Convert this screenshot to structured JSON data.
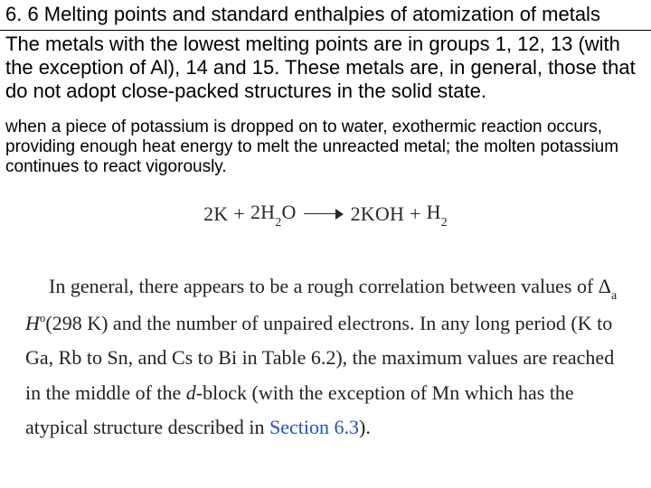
{
  "title": "6. 6 Melting points and standard enthalpies of atomization of metals",
  "para1": "The metals with the lowest melting points are in groups 1, 12, 13 (with the exception of Al), 14 and 15. These metals are, in general, those that do not adopt close-packed structures in the solid state.",
  "para2": "when a piece of potassium is dropped on to water, exothermic reaction occurs, providing enough heat energy to melt the unreacted metal; the molten potassium continues to react vigorously.",
  "equation": {
    "lhs_a": "2K",
    "plus1": "+",
    "lhs_b_coef": "2H",
    "lhs_b_sub": "2",
    "lhs_b_tail": "O",
    "rhs_a": "2KOH",
    "plus2": "+",
    "rhs_b": "H",
    "rhs_b_sub": "2"
  },
  "serif": {
    "t1": "In general, there appears to be a rough correlation between values of ",
    "delta": "Δ",
    "delta_sub": "a",
    "h": " H",
    "h_sup": "o",
    "k": "(298 K) and the number of unpaired electrons. In any long period (K to Ga, Rb to Sn, and Cs to Bi in Table 6.2), the maximum values are reached in the middle of the ",
    "dblock": "d",
    "t2": "-block (with the exception of Mn which has the atypical structure described in ",
    "link": "Section 6.3",
    "t3": ")."
  },
  "colors": {
    "background": "#ffffff",
    "text": "#000000",
    "serif_text": "#222222",
    "link": "#1a54c4",
    "rule": "#000000"
  }
}
